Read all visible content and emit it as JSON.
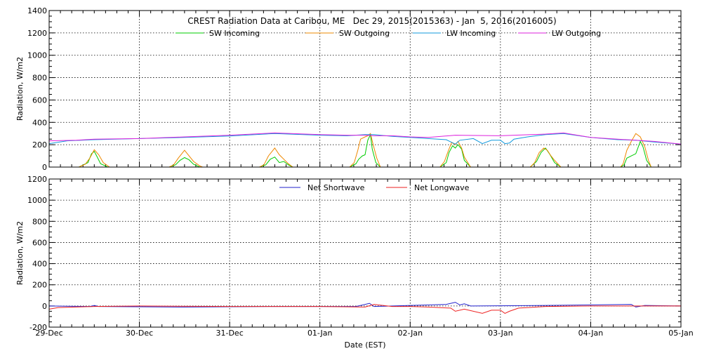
{
  "chart_data": [
    {
      "type": "line",
      "title": "CREST Radiation Data at Caribou, ME   Dec 29, 2015(2015363) - Jan  5, 2016(2016005)",
      "ylabel": "Radiation, W/m2",
      "ylim": [
        0,
        1400
      ],
      "yticks": [
        0,
        200,
        400,
        600,
        800,
        1000,
        1200,
        1400
      ],
      "xlim": [
        0,
        7
      ],
      "grid": true,
      "legend": "top",
      "series": [
        {
          "name": "SW Incoming",
          "color": "#00cc00",
          "points": [
            [
              0,
              0
            ],
            [
              0.33,
              0
            ],
            [
              0.43,
              40
            ],
            [
              0.47,
              120
            ],
            [
              0.5,
              140
            ],
            [
              0.53,
              95
            ],
            [
              0.57,
              30
            ],
            [
              0.65,
              0
            ],
            [
              1.33,
              0
            ],
            [
              1.4,
              20
            ],
            [
              1.45,
              60
            ],
            [
              1.5,
              85
            ],
            [
              1.55,
              65
            ],
            [
              1.6,
              25
            ],
            [
              1.67,
              0
            ],
            [
              2.33,
              0
            ],
            [
              2.4,
              20
            ],
            [
              2.45,
              70
            ],
            [
              2.5,
              90
            ],
            [
              2.55,
              40
            ],
            [
              2.6,
              50
            ],
            [
              2.65,
              20
            ],
            [
              2.7,
              0
            ],
            [
              3.33,
              0
            ],
            [
              3.4,
              30
            ],
            [
              3.43,
              70
            ],
            [
              3.47,
              100
            ],
            [
              3.5,
              110
            ],
            [
              3.53,
              240
            ],
            [
              3.56,
              290
            ],
            [
              3.58,
              160
            ],
            [
              3.62,
              40
            ],
            [
              3.67,
              0
            ],
            [
              4.33,
              0
            ],
            [
              4.4,
              40
            ],
            [
              4.43,
              130
            ],
            [
              4.47,
              190
            ],
            [
              4.5,
              170
            ],
            [
              4.53,
              200
            ],
            [
              4.57,
              160
            ],
            [
              4.6,
              60
            ],
            [
              4.67,
              0
            ],
            [
              5.33,
              0
            ],
            [
              5.4,
              50
            ],
            [
              5.45,
              130
            ],
            [
              5.5,
              170
            ],
            [
              5.55,
              110
            ],
            [
              5.6,
              40
            ],
            [
              5.67,
              0
            ],
            [
              6.33,
              0
            ],
            [
              6.37,
              20
            ],
            [
              6.4,
              80
            ],
            [
              6.45,
              100
            ],
            [
              6.5,
              120
            ],
            [
              6.55,
              230
            ],
            [
              6.58,
              180
            ],
            [
              6.62,
              60
            ],
            [
              6.67,
              0
            ],
            [
              7,
              0
            ]
          ]
        },
        {
          "name": "SW Outgoing",
          "color": "#ee8800",
          "points": [
            [
              0,
              0
            ],
            [
              0.33,
              0
            ],
            [
              0.4,
              25
            ],
            [
              0.45,
              80
            ],
            [
              0.5,
              155
            ],
            [
              0.55,
              110
            ],
            [
              0.6,
              40
            ],
            [
              0.67,
              0
            ],
            [
              1.33,
              0
            ],
            [
              1.38,
              20
            ],
            [
              1.43,
              80
            ],
            [
              1.5,
              150
            ],
            [
              1.55,
              100
            ],
            [
              1.6,
              50
            ],
            [
              1.67,
              10
            ],
            [
              1.7,
              0
            ],
            [
              2.33,
              0
            ],
            [
              2.38,
              20
            ],
            [
              2.43,
              100
            ],
            [
              2.5,
              170
            ],
            [
              2.55,
              110
            ],
            [
              2.6,
              70
            ],
            [
              2.65,
              30
            ],
            [
              2.7,
              0
            ],
            [
              3.33,
              0
            ],
            [
              3.38,
              40
            ],
            [
              3.42,
              150
            ],
            [
              3.45,
              250
            ],
            [
              3.5,
              270
            ],
            [
              3.53,
              280
            ],
            [
              3.56,
              300
            ],
            [
              3.59,
              200
            ],
            [
              3.63,
              80
            ],
            [
              3.67,
              0
            ],
            [
              4.33,
              0
            ],
            [
              4.38,
              50
            ],
            [
              4.42,
              140
            ],
            [
              4.46,
              220
            ],
            [
              4.5,
              200
            ],
            [
              4.53,
              230
            ],
            [
              4.57,
              170
            ],
            [
              4.6,
              90
            ],
            [
              4.67,
              0
            ],
            [
              5.33,
              0
            ],
            [
              5.38,
              40
            ],
            [
              5.43,
              130
            ],
            [
              5.48,
              170
            ],
            [
              5.52,
              150
            ],
            [
              5.56,
              100
            ],
            [
              5.6,
              60
            ],
            [
              5.67,
              0
            ],
            [
              6.33,
              0
            ],
            [
              6.36,
              30
            ],
            [
              6.4,
              150
            ],
            [
              6.45,
              230
            ],
            [
              6.5,
              300
            ],
            [
              6.55,
              270
            ],
            [
              6.6,
              180
            ],
            [
              6.64,
              60
            ],
            [
              6.67,
              0
            ],
            [
              7,
              0
            ]
          ]
        },
        {
          "name": "LW Incoming",
          "color": "#1199dd",
          "points": [
            [
              0,
              210
            ],
            [
              0.2,
              235
            ],
            [
              0.5,
              245
            ],
            [
              1.0,
              255
            ],
            [
              1.5,
              265
            ],
            [
              2.0,
              278
            ],
            [
              2.5,
              300
            ],
            [
              3.0,
              285
            ],
            [
              3.3,
              280
            ],
            [
              3.5,
              290
            ],
            [
              3.6,
              290
            ],
            [
              3.8,
              275
            ],
            [
              4.0,
              265
            ],
            [
              4.2,
              255
            ],
            [
              4.4,
              245
            ],
            [
              4.5,
              205
            ],
            [
              4.55,
              240
            ],
            [
              4.7,
              255
            ],
            [
              4.8,
              210
            ],
            [
              4.9,
              240
            ],
            [
              5.0,
              240
            ],
            [
              5.05,
              210
            ],
            [
              5.1,
              215
            ],
            [
              5.15,
              250
            ],
            [
              5.3,
              270
            ],
            [
              5.5,
              290
            ],
            [
              5.7,
              300
            ],
            [
              6.0,
              265
            ],
            [
              6.3,
              245
            ],
            [
              6.5,
              240
            ],
            [
              6.7,
              225
            ],
            [
              7.0,
              205
            ]
          ]
        },
        {
          "name": "LW Outgoing",
          "color": "#dd22dd",
          "points": [
            [
              0,
              235
            ],
            [
              0.3,
              240
            ],
            [
              0.5,
              250
            ],
            [
              1.0,
              255
            ],
            [
              1.5,
              270
            ],
            [
              2.0,
              285
            ],
            [
              2.5,
              305
            ],
            [
              3.0,
              290
            ],
            [
              3.3,
              285
            ],
            [
              3.5,
              285
            ],
            [
              3.6,
              280
            ],
            [
              3.8,
              280
            ],
            [
              4.0,
              270
            ],
            [
              4.2,
              265
            ],
            [
              4.5,
              285
            ],
            [
              5.0,
              280
            ],
            [
              5.5,
              295
            ],
            [
              5.7,
              305
            ],
            [
              6.0,
              265
            ],
            [
              6.3,
              250
            ],
            [
              6.5,
              240
            ],
            [
              6.7,
              230
            ],
            [
              7.0,
              205
            ]
          ]
        }
      ]
    },
    {
      "type": "line",
      "ylabel": "Radiation, W/m2",
      "xlabel": "Date (EST)",
      "ylim": [
        -200,
        1200
      ],
      "yticks": [
        -200,
        0,
        200,
        400,
        600,
        800,
        1000,
        1200
      ],
      "xlim": [
        0,
        7
      ],
      "xticks": [
        "29-Dec",
        "30-Dec",
        "31-Dec",
        "01-Jan",
        "02-Jan",
        "03-Jan",
        "04-Jan",
        "05-Jan"
      ],
      "grid": true,
      "legend": "top",
      "series": [
        {
          "name": "Net Shortwave",
          "color": "#2222cc",
          "points": [
            [
              0,
              0
            ],
            [
              0.45,
              -5
            ],
            [
              0.5,
              5
            ],
            [
              0.55,
              -5
            ],
            [
              1.5,
              -10
            ],
            [
              2.5,
              -5
            ],
            [
              3.4,
              -5
            ],
            [
              3.55,
              25
            ],
            [
              3.6,
              -5
            ],
            [
              4.4,
              15
            ],
            [
              4.5,
              35
            ],
            [
              4.55,
              10
            ],
            [
              4.6,
              20
            ],
            [
              4.67,
              0
            ],
            [
              5.5,
              5
            ],
            [
              6.45,
              15
            ],
            [
              6.5,
              -10
            ],
            [
              6.6,
              5
            ],
            [
              7,
              0
            ]
          ]
        },
        {
          "name": "Net Longwave",
          "color": "#ee2222",
          "points": [
            [
              0,
              -30
            ],
            [
              0.1,
              -15
            ],
            [
              0.5,
              -5
            ],
            [
              1.0,
              0
            ],
            [
              2.0,
              -5
            ],
            [
              2.5,
              -5
            ],
            [
              3.0,
              -5
            ],
            [
              3.5,
              -10
            ],
            [
              3.6,
              15
            ],
            [
              3.8,
              -5
            ],
            [
              4.0,
              -5
            ],
            [
              4.2,
              -10
            ],
            [
              4.45,
              -20
            ],
            [
              4.5,
              -50
            ],
            [
              4.6,
              -30
            ],
            [
              4.8,
              -70
            ],
            [
              4.9,
              -40
            ],
            [
              5.0,
              -40
            ],
            [
              5.05,
              -70
            ],
            [
              5.1,
              -50
            ],
            [
              5.2,
              -20
            ],
            [
              5.5,
              -5
            ],
            [
              6.0,
              0
            ],
            [
              7.0,
              0
            ]
          ]
        }
      ]
    }
  ]
}
